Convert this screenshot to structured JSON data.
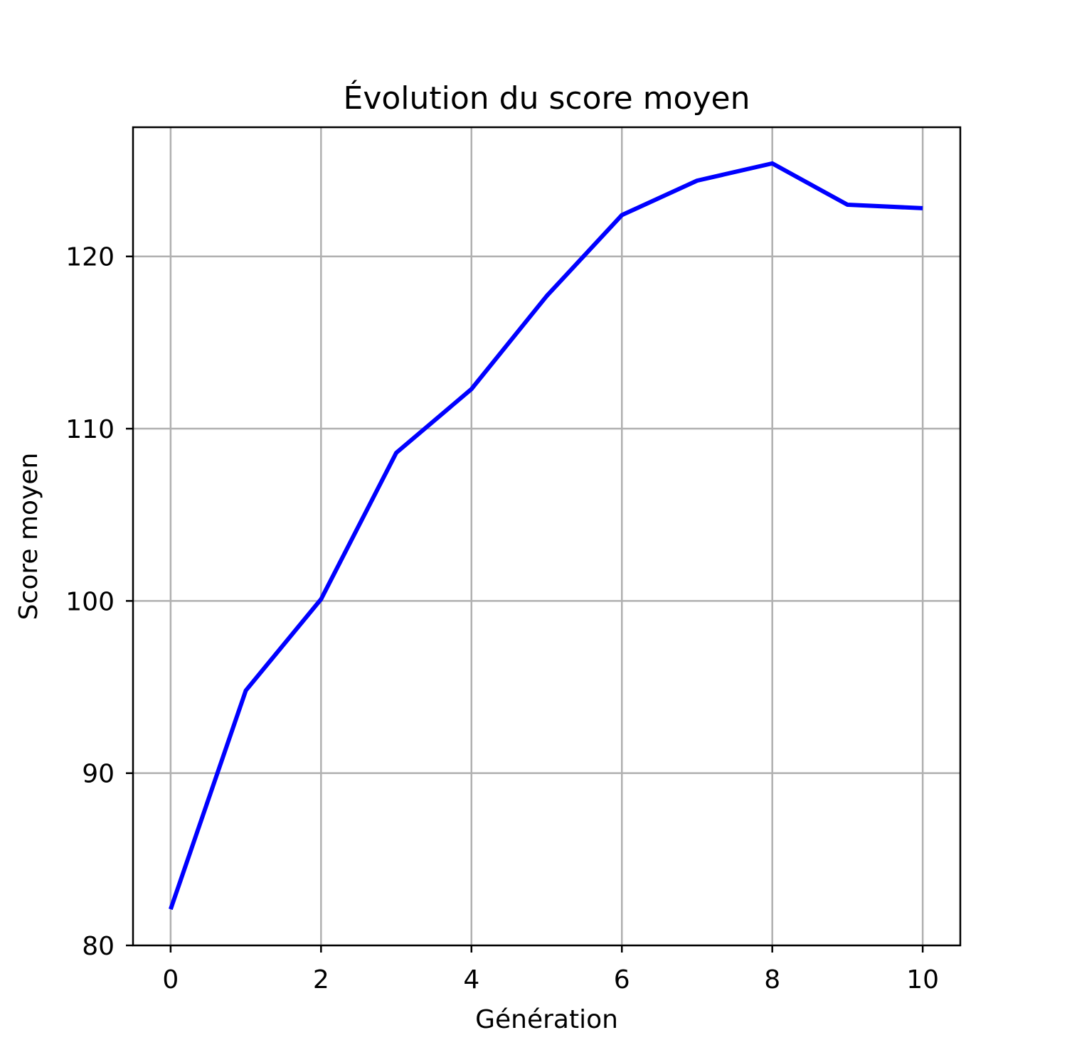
{
  "chart_data": {
    "type": "line",
    "title": "Évolution du score moyen",
    "xlabel": "Génération",
    "ylabel": "Score moyen",
    "x": [
      0,
      1,
      2,
      3,
      4,
      5,
      6,
      7,
      8,
      9,
      10
    ],
    "series": [
      {
        "values": [
          82.1,
          94.8,
          100.1,
          108.6,
          112.3,
          117.7,
          122.4,
          124.4,
          125.4,
          123.0,
          122.8
        ],
        "color": "#0000ff"
      }
    ],
    "xlim": [
      -0.5,
      10.5
    ],
    "ylim": [
      80,
      127.5
    ],
    "xticks": [
      0,
      2,
      4,
      6,
      8,
      10
    ],
    "xtick_labels": [
      "0",
      "2",
      "4",
      "6",
      "8",
      "10"
    ],
    "yticks": [
      80,
      90,
      100,
      110,
      120
    ],
    "ytick_labels": [
      "80",
      "90",
      "100",
      "110",
      "120"
    ],
    "grid": true,
    "legend": "none"
  }
}
